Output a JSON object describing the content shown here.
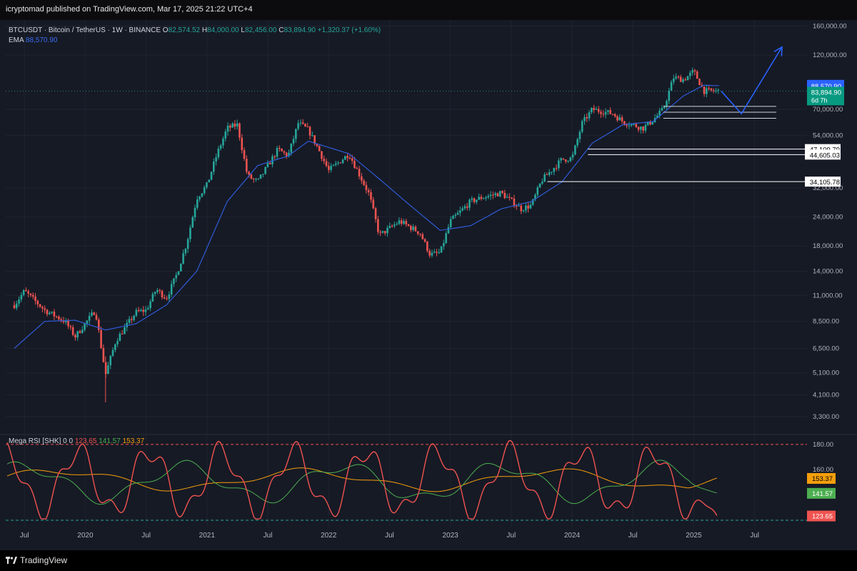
{
  "header": {
    "published_text": "icryptomad published on TradingView.com, Mar 17, 2025 21:22 UTC+4"
  },
  "legend": {
    "symbol": "BTCUSDT · Bitcoin / TetherUS · 1W · BINANCE",
    "o_label": "O",
    "o_value": "82,574.52",
    "h_label": "H",
    "h_value": "84,000.00",
    "l_label": "L",
    "l_value": "82,456.00",
    "c_label": "C",
    "c_value": "83,894.90",
    "change": "+1,320.37 (+1.60%)",
    "ema_label": "EMA",
    "ema_value": "88,570.90"
  },
  "rsi_legend": {
    "name": "Mega RSI [SHK]",
    "params": "0 0",
    "v1": "123.65",
    "v2": "141.57",
    "v3": "153.37"
  },
  "footer": {
    "brand": "TradingView"
  },
  "colors": {
    "bg": "#161a25",
    "up": "#26a69a",
    "down": "#ef5350",
    "ema": "#2f5bd8",
    "arrow": "#2962ff",
    "rsi": "#ef5350",
    "rsi_green": "#4caf50",
    "rsi_orange": "#f59e0b"
  },
  "chart_data": [
    {
      "type": "candlestick",
      "title": "BTCUSDT · Bitcoin / TetherUS · 1W · BINANCE",
      "y_scale": "log",
      "ylim": [
        2800,
        170000
      ],
      "price_ticks": [
        160000,
        120000,
        70000,
        54000,
        32000,
        24000,
        18000,
        14000,
        11000,
        8500,
        6500,
        5100,
        4100,
        3300
      ],
      "x_labels": [
        "Jul",
        "2020",
        "Jul",
        "2021",
        "Jul",
        "2022",
        "Jul",
        "2023",
        "Jul",
        "2024",
        "Jul",
        "2025",
        "Jul"
      ],
      "series": [
        {
          "name": "Price",
          "anchors": [
            [
              "2019-06",
              10000
            ],
            [
              "2019-07",
              11500
            ],
            [
              "2019-09",
              9500
            ],
            [
              "2019-11",
              8500
            ],
            [
              "2019-12",
              7300
            ],
            [
              "2020-02",
              9500
            ],
            [
              "2020-03",
              5000
            ],
            [
              "2020-04",
              7000
            ],
            [
              "2020-06",
              9300
            ],
            [
              "2020-07",
              9500
            ],
            [
              "2020-08",
              11700
            ],
            [
              "2020-09",
              10700
            ],
            [
              "2020-10",
              13500
            ],
            [
              "2020-11",
              18500
            ],
            [
              "2020-12",
              29000
            ],
            [
              "2021-01",
              33000
            ],
            [
              "2021-02",
              45000
            ],
            [
              "2021-03",
              58000
            ],
            [
              "2021-04",
              60000
            ],
            [
              "2021-05",
              36000
            ],
            [
              "2021-06",
              34000
            ],
            [
              "2021-07",
              40000
            ],
            [
              "2021-08",
              47000
            ],
            [
              "2021-09",
              44000
            ],
            [
              "2021-10",
              61000
            ],
            [
              "2021-11",
              57000
            ],
            [
              "2021-12",
              47000
            ],
            [
              "2022-01",
              38000
            ],
            [
              "2022-03",
              45000
            ],
            [
              "2022-05",
              30000
            ],
            [
              "2022-06",
              20000
            ],
            [
              "2022-08",
              23000
            ],
            [
              "2022-10",
              20500
            ],
            [
              "2022-11",
              16500
            ],
            [
              "2022-12",
              16800
            ],
            [
              "2023-01",
              23000
            ],
            [
              "2023-03",
              28000
            ],
            [
              "2023-04",
              29000
            ],
            [
              "2023-06",
              30500
            ],
            [
              "2023-08",
              26000
            ],
            [
              "2023-09",
              27000
            ],
            [
              "2023-10",
              34500
            ],
            [
              "2023-12",
              42500
            ],
            [
              "2024-01",
              43000
            ],
            [
              "2024-02",
              61000
            ],
            [
              "2024-03",
              70000
            ],
            [
              "2024-05",
              67000
            ],
            [
              "2024-06",
              62000
            ],
            [
              "2024-08",
              58000
            ],
            [
              "2024-09",
              63000
            ],
            [
              "2024-10",
              70000
            ],
            [
              "2024-11",
              96000
            ],
            [
              "2024-12",
              94000
            ],
            [
              "2025-01",
              102000
            ],
            [
              "2025-02",
              84000
            ],
            [
              "2025-03",
              83894.9
            ]
          ]
        },
        {
          "name": "EMA",
          "anchors": [
            [
              "2019-06",
              6500
            ],
            [
              "2019-09",
              8500
            ],
            [
              "2019-12",
              8600
            ],
            [
              "2020-03",
              7800
            ],
            [
              "2020-06",
              8300
            ],
            [
              "2020-09",
              10000
            ],
            [
              "2020-12",
              14000
            ],
            [
              "2021-03",
              28000
            ],
            [
              "2021-06",
              40000
            ],
            [
              "2021-09",
              44000
            ],
            [
              "2021-11",
              51000
            ],
            [
              "2022-03",
              45000
            ],
            [
              "2022-06",
              35000
            ],
            [
              "2022-09",
              27000
            ],
            [
              "2022-12",
              21000
            ],
            [
              "2023-03",
              22000
            ],
            [
              "2023-06",
              26000
            ],
            [
              "2023-09",
              28000
            ],
            [
              "2023-12",
              34000
            ],
            [
              "2024-03",
              50000
            ],
            [
              "2024-06",
              60000
            ],
            [
              "2024-09",
              62000
            ],
            [
              "2024-12",
              80000
            ],
            [
              "2025-02",
              89000
            ],
            [
              "2025-03",
              88570.9
            ]
          ]
        }
      ],
      "levels": [
        {
          "from": "2024-02",
          "value": 47109.79,
          "label": "47,109.79"
        },
        {
          "from": "2024-02",
          "value": 44605.03,
          "label": "44,605.03"
        },
        {
          "from": "2023-10",
          "value": 34105.78,
          "label": "34,105.78"
        }
      ],
      "zone_lines": [
        72000,
        68000,
        64000
      ],
      "price_labels": {
        "ema": "88,570.90",
        "last": "83,894.90",
        "countdown": "6d 7h"
      },
      "projection": [
        [
          "2025-03",
          83894.9
        ],
        [
          "2025-05",
          67000
        ],
        [
          "2025-09",
          130000
        ]
      ]
    },
    {
      "type": "line",
      "title": "Mega RSI [SHK]",
      "ylim": [
        120,
        185
      ],
      "y_ticks": [
        180,
        160
      ],
      "guides": [
        180,
        120
      ],
      "series": [
        {
          "name": "Mega RSI",
          "color": "#ef5350",
          "last": 123.65
        },
        {
          "name": "signal",
          "color": "#4caf50",
          "last": 141.57
        },
        {
          "name": "baseline",
          "color": "#f59e0b",
          "last": 153.37
        }
      ]
    }
  ]
}
